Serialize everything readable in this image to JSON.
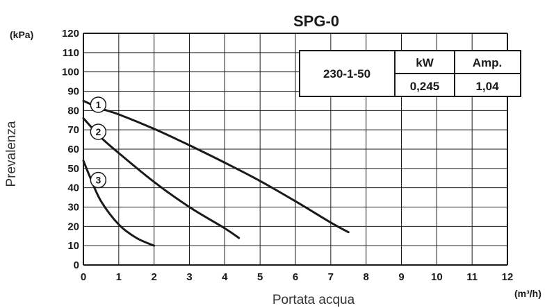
{
  "chart_data": {
    "type": "line",
    "title": "SPG-0",
    "xlabel": "Portata acqua",
    "ylabel": "Prevalenza",
    "x_unit": "(m³/h)",
    "y_unit": "(kPa)",
    "xlim": [
      0,
      12
    ],
    "ylim": [
      0,
      120
    ],
    "x_ticks": [
      "0",
      "1",
      "2",
      "3",
      "4",
      "5",
      "6",
      "7",
      "8",
      "9",
      "10",
      "11",
      "12"
    ],
    "y_ticks": [
      "0",
      "10",
      "20",
      "30",
      "40",
      "50",
      "60",
      "70",
      "80",
      "90",
      "100",
      "110",
      "120"
    ],
    "grid": true,
    "series": [
      {
        "name": "1",
        "x": [
          0,
          0.5,
          1,
          2,
          3,
          4,
          5,
          6,
          7,
          7.5
        ],
        "y": [
          85,
          81,
          78,
          70.5,
          62,
          53,
          43.5,
          33,
          22,
          17
        ]
      },
      {
        "name": "2",
        "x": [
          0,
          0.5,
          1,
          2,
          3,
          4,
          4.4
        ],
        "y": [
          76,
          66,
          58,
          43,
          30,
          19,
          14
        ]
      },
      {
        "name": "3",
        "x": [
          0,
          0.2,
          0.5,
          1,
          1.5,
          2
        ],
        "y": [
          54,
          45,
          33,
          21,
          14,
          10
        ]
      }
    ],
    "specs_table": {
      "supply": "230-1-50",
      "headers": [
        "kW",
        "Amp."
      ],
      "values": [
        "0,245",
        "1,04"
      ]
    }
  }
}
